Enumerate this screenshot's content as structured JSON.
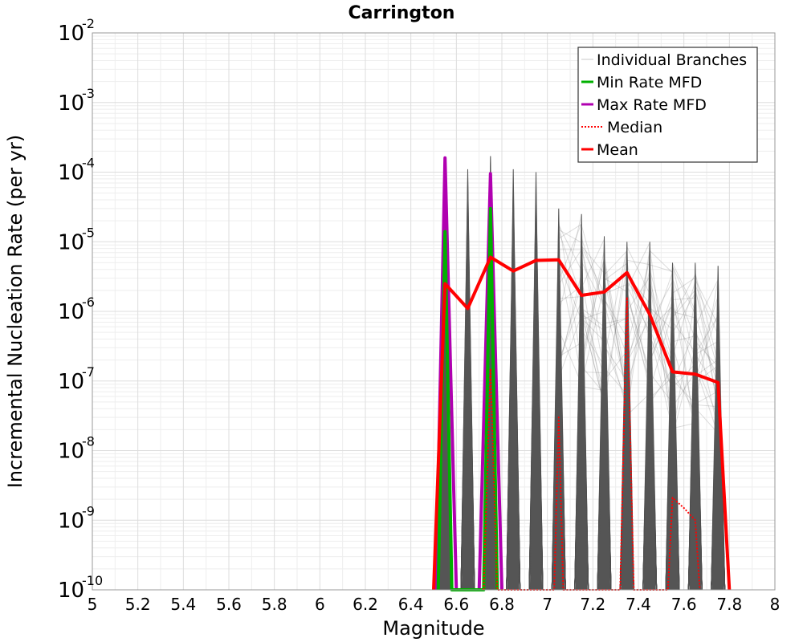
{
  "chart_data": {
    "type": "line",
    "title": "Carrington",
    "xlabel": "Magnitude",
    "ylabel": "Incremental Nucleation Rate (per yr)",
    "x_scale": "linear",
    "y_scale": "log",
    "xlim": [
      5,
      8
    ],
    "ylim": [
      1e-10,
      0.01
    ],
    "x_ticks": [
      "5",
      "5.2",
      "5.4",
      "5.6",
      "5.8",
      "6",
      "6.2",
      "6.4",
      "6.6",
      "6.8",
      "7",
      "7.2",
      "7.4",
      "7.6",
      "7.8",
      "8"
    ],
    "y_ticks": [
      {
        "base": "10",
        "exp": "-10"
      },
      {
        "base": "10",
        "exp": "-9"
      },
      {
        "base": "10",
        "exp": "-8"
      },
      {
        "base": "10",
        "exp": "-7"
      },
      {
        "base": "10",
        "exp": "-6"
      },
      {
        "base": "10",
        "exp": "-5"
      },
      {
        "base": "10",
        "exp": "-4"
      },
      {
        "base": "10",
        "exp": "-3"
      },
      {
        "base": "10",
        "exp": "-2"
      }
    ],
    "grid": true,
    "legend_position": "top-right",
    "legend": [
      {
        "label": "Individual Branches",
        "color": "#c8c8c8",
        "style": "solid"
      },
      {
        "label": "Min Rate MFD",
        "color": "#00b000",
        "style": "solid"
      },
      {
        "label": "Max Rate MFD",
        "color": "#b000b0",
        "style": "solid"
      },
      {
        "label": "Median",
        "color": "#ff0000",
        "style": "dotted"
      },
      {
        "label": "Mean",
        "color": "#ff0000",
        "style": "solid"
      }
    ],
    "series": [
      {
        "name": "Mean",
        "color": "#ff0000",
        "style": "solid",
        "points": [
          [
            6.5,
            1e-10
          ],
          [
            6.55,
            2.5e-06
          ],
          [
            6.65,
            1.1e-06
          ],
          [
            6.75,
            6e-06
          ],
          [
            6.85,
            3.8e-06
          ],
          [
            6.95,
            5.4e-06
          ],
          [
            7.05,
            5.5e-06
          ],
          [
            7.15,
            1.7e-06
          ],
          [
            7.25,
            1.9e-06
          ],
          [
            7.35,
            3.6e-06
          ],
          [
            7.45,
            9e-07
          ],
          [
            7.55,
            1.35e-07
          ],
          [
            7.65,
            1.25e-07
          ],
          [
            7.75,
            9.5e-08
          ],
          [
            7.8,
            1e-10
          ]
        ]
      },
      {
        "name": "Median",
        "color": "#ff0000",
        "style": "dotted",
        "points": [
          [
            6.72,
            1e-10
          ],
          [
            6.75,
            1.5e-07
          ],
          [
            6.78,
            1e-10
          ],
          [
            7.03,
            1e-10
          ],
          [
            7.05,
            3e-08
          ],
          [
            7.07,
            1e-10
          ],
          [
            7.32,
            1e-10
          ],
          [
            7.35,
            1.6e-06
          ],
          [
            7.38,
            1e-10
          ],
          [
            7.53,
            1e-10
          ],
          [
            7.55,
            2.1e-09
          ],
          [
            7.6,
            1.5e-09
          ],
          [
            7.65,
            1e-09
          ],
          [
            7.67,
            1e-10
          ]
        ]
      },
      {
        "name": "Max Rate MFD",
        "color": "#b000b0",
        "style": "solid",
        "points": [
          [
            6.51,
            1e-10
          ],
          [
            6.55,
            0.00016
          ],
          [
            6.6,
            1e-10
          ],
          [
            6.7,
            1e-10
          ],
          [
            6.75,
            9.5e-05
          ],
          [
            6.8,
            1e-10
          ]
        ]
      },
      {
        "name": "Min Rate MFD",
        "color": "#00b000",
        "style": "solid",
        "points": [
          [
            6.52,
            1e-10
          ],
          [
            6.55,
            1.4e-05
          ],
          [
            6.58,
            1e-10
          ],
          [
            6.72,
            1e-10
          ],
          [
            6.75,
            3e-05
          ],
          [
            6.78,
            1e-10
          ]
        ]
      }
    ],
    "branch_peaks": [
      {
        "m": 6.55,
        "rate": 0.00016
      },
      {
        "m": 6.65,
        "rate": 0.00011
      },
      {
        "m": 6.75,
        "rate": 0.00017
      },
      {
        "m": 6.85,
        "rate": 0.00011
      },
      {
        "m": 6.95,
        "rate": 0.0001
      },
      {
        "m": 7.05,
        "rate": 3e-05
      },
      {
        "m": 7.15,
        "rate": 2.5e-05
      },
      {
        "m": 7.25,
        "rate": 1.2e-05
      },
      {
        "m": 7.35,
        "rate": 1e-05
      },
      {
        "m": 7.45,
        "rate": 1e-05
      },
      {
        "m": 7.55,
        "rate": 5e-06
      },
      {
        "m": 7.65,
        "rate": 5e-06
      },
      {
        "m": 7.75,
        "rate": 4.5e-06
      }
    ]
  }
}
